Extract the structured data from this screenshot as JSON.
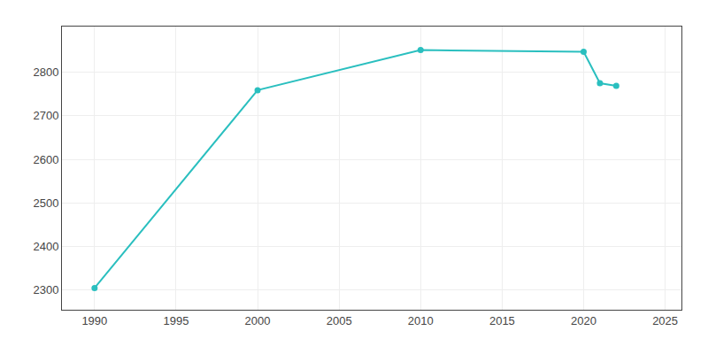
{
  "chart_data": {
    "type": "line",
    "x": [
      1990,
      2000,
      2010,
      2020,
      2021,
      2022
    ],
    "values": [
      2305,
      2759,
      2851,
      2847,
      2775,
      2769
    ],
    "color": "#2abfbf",
    "marker": "circle",
    "xlim": [
      1988,
      2026
    ],
    "ylim": [
      2255,
      2905
    ],
    "xticks": [
      1990,
      1995,
      2000,
      2005,
      2010,
      2015,
      2020,
      2025
    ],
    "yticks": [
      2300,
      2400,
      2500,
      2600,
      2700,
      2800
    ],
    "grid": true
  }
}
